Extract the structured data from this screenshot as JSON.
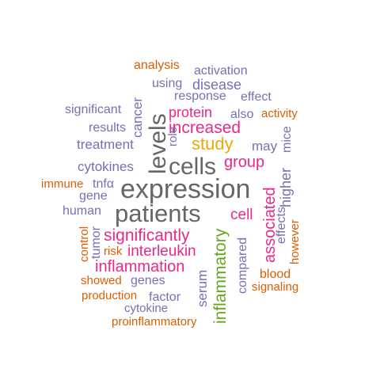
{
  "colors": {
    "orange": "#d95f02",
    "purple": "#7570b3",
    "magenta": "#e7298a",
    "gray": "#666666",
    "gold": "#e6ab02",
    "green": "#66a61e"
  },
  "words": [
    {
      "text": "expression",
      "color": "gray"
    },
    {
      "text": "patients",
      "color": "gray"
    },
    {
      "text": "cells",
      "color": "gray"
    },
    {
      "text": "levels",
      "color": "gray"
    },
    {
      "text": "inflammatory",
      "color": "green"
    },
    {
      "text": "study",
      "color": "gold"
    },
    {
      "text": "significantly",
      "color": "magenta"
    },
    {
      "text": "increased",
      "color": "magenta"
    },
    {
      "text": "associated",
      "color": "magenta"
    },
    {
      "text": "inflammation",
      "color": "magenta"
    },
    {
      "text": "interleukin",
      "color": "magenta"
    },
    {
      "text": "group",
      "color": "magenta"
    },
    {
      "text": "protein",
      "color": "magenta"
    },
    {
      "text": "cell",
      "color": "magenta"
    },
    {
      "text": "analysis",
      "color": "orange"
    },
    {
      "text": "activation",
      "color": "purple"
    },
    {
      "text": "using",
      "color": "purple"
    },
    {
      "text": "disease",
      "color": "purple"
    },
    {
      "text": "response",
      "color": "purple"
    },
    {
      "text": "effect",
      "color": "purple"
    },
    {
      "text": "significant",
      "color": "purple"
    },
    {
      "text": "cancer",
      "color": "purple"
    },
    {
      "text": "also",
      "color": "purple"
    },
    {
      "text": "activity",
      "color": "orange"
    },
    {
      "text": "results",
      "color": "purple"
    },
    {
      "text": "role",
      "color": "purple"
    },
    {
      "text": "mice",
      "color": "purple"
    },
    {
      "text": "treatment",
      "color": "purple"
    },
    {
      "text": "may",
      "color": "purple"
    },
    {
      "text": "cytokines",
      "color": "purple"
    },
    {
      "text": "higher",
      "color": "purple"
    },
    {
      "text": "immune",
      "color": "orange"
    },
    {
      "text": "tnfα",
      "color": "purple"
    },
    {
      "text": "gene",
      "color": "purple"
    },
    {
      "text": "effects",
      "color": "purple"
    },
    {
      "text": "human",
      "color": "purple"
    },
    {
      "text": "control",
      "color": "orange"
    },
    {
      "text": "tumor",
      "color": "purple"
    },
    {
      "text": "risk",
      "color": "orange"
    },
    {
      "text": "compared",
      "color": "purple"
    },
    {
      "text": "however",
      "color": "orange"
    },
    {
      "text": "serum",
      "color": "purple"
    },
    {
      "text": "blood",
      "color": "orange"
    },
    {
      "text": "showed",
      "color": "orange"
    },
    {
      "text": "genes",
      "color": "purple"
    },
    {
      "text": "signaling",
      "color": "orange"
    },
    {
      "text": "production",
      "color": "orange"
    },
    {
      "text": "factor",
      "color": "purple"
    },
    {
      "text": "cytokine",
      "color": "purple"
    },
    {
      "text": "proinflammatory",
      "color": "orange"
    }
  ]
}
